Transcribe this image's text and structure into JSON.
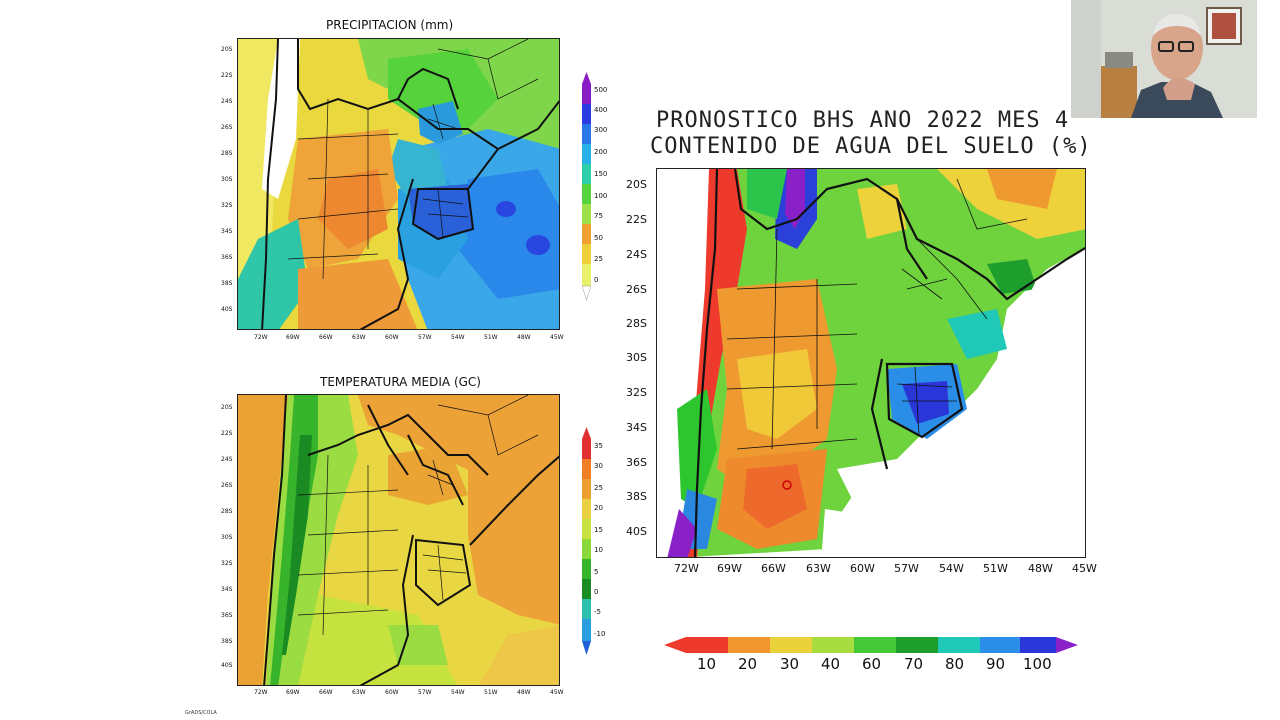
{
  "panels": {
    "precip": {
      "title": "PRECIPITACION (mm)",
      "lat_ticks": [
        "20S",
        "22S",
        "24S",
        "26S",
        "28S",
        "30S",
        "32S",
        "34S",
        "36S",
        "38S",
        "40S"
      ],
      "lon_ticks": [
        "72W",
        "69W",
        "66W",
        "63W",
        "60W",
        "57W",
        "54W",
        "51W",
        "48W",
        "45W"
      ],
      "colorbar": {
        "labels": [
          "500",
          "400",
          "300",
          "200",
          "150",
          "100",
          "75",
          "50",
          "25",
          "0"
        ],
        "colors": [
          "#8a1cc8",
          "#2b3de0",
          "#2a78e8",
          "#2ab0e8",
          "#2ccfa8",
          "#56d23c",
          "#9ee04a",
          "#eecf3a",
          "#f0a030",
          "#e9f06a",
          "#ffffff"
        ]
      }
    },
    "temp": {
      "title": "TEMPERATURA MEDIA (GC)",
      "lat_ticks": [
        "20S",
        "22S",
        "24S",
        "26S",
        "28S",
        "30S",
        "32S",
        "34S",
        "36S",
        "38S",
        "40S"
      ],
      "lon_ticks": [
        "72W",
        "69W",
        "66W",
        "63W",
        "60W",
        "57W",
        "54W",
        "51W",
        "48W",
        "45W"
      ],
      "colorbar": {
        "labels": [
          "35",
          "30",
          "25",
          "20",
          "15",
          "10",
          "5",
          "0",
          "-5",
          "-10"
        ],
        "colors": [
          "#e03030",
          "#f08028",
          "#eca030",
          "#e9d040",
          "#c8e040",
          "#8ad83a",
          "#36b42c",
          "#1a8c24",
          "#2cc0b0",
          "#2a9ee0",
          "#2060d8"
        ]
      }
    },
    "soil": {
      "title_line1": "PRONOSTICO BHS ANO 2022 MES 4",
      "title_line2": "CONTENIDO DE AGUA DEL SUELO (%)",
      "lat_ticks": [
        "20S",
        "22S",
        "24S",
        "26S",
        "28S",
        "30S",
        "32S",
        "34S",
        "36S",
        "38S",
        "40S"
      ],
      "lon_ticks": [
        "72W",
        "69W",
        "66W",
        "63W",
        "60W",
        "57W",
        "54W",
        "51W",
        "48W",
        "45W"
      ],
      "colorbar": {
        "labels": [
          "10",
          "20",
          "30",
          "40",
          "60",
          "70",
          "80",
          "90",
          "100"
        ],
        "colors": [
          "#ee3a2c",
          "#f0962c",
          "#ead23c",
          "#a8dc40",
          "#44c838",
          "#1e9e2c",
          "#20c8b8",
          "#2a8ee8",
          "#2a36d8",
          "#8a20c8"
        ]
      }
    }
  },
  "footer_note": "GrADS/COLA",
  "webcam": {
    "label": "presenter-webcam"
  }
}
